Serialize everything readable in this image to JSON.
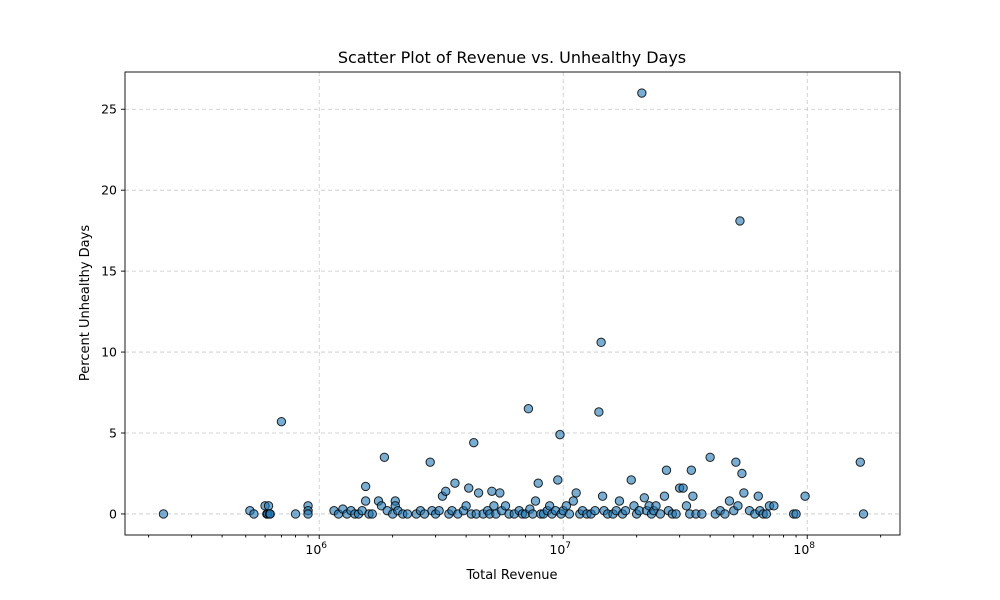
{
  "chart_data": {
    "type": "scatter",
    "title": "Scatter Plot of Revenue vs. Unhealthy Days",
    "xlabel": "Total Revenue",
    "ylabel": "Percent Unhealthy Days",
    "xscale": "log",
    "xlim": [
      160000,
      240000000
    ],
    "ylim": [
      -1.3,
      27.3
    ],
    "yticks": [
      0,
      5,
      10,
      15,
      20,
      25
    ],
    "xticks": [
      {
        "value": 1000000,
        "base": "10",
        "exp": "6"
      },
      {
        "value": 10000000,
        "base": "10",
        "exp": "7"
      },
      {
        "value": 100000000,
        "base": "10",
        "exp": "8"
      }
    ],
    "grid": true,
    "marker_color": "#1f77b4",
    "points": [
      [
        230000,
        0
      ],
      [
        520000,
        0.2
      ],
      [
        540000,
        0
      ],
      [
        600000,
        0.5
      ],
      [
        610000,
        0
      ],
      [
        620000,
        0.5
      ],
      [
        615000,
        0
      ],
      [
        625000,
        0
      ],
      [
        630000,
        0
      ],
      [
        700000,
        5.7
      ],
      [
        800000,
        0
      ],
      [
        900000,
        0.5
      ],
      [
        900000,
        0.2
      ],
      [
        900000,
        0
      ],
      [
        1150000,
        0.2
      ],
      [
        1200000,
        0
      ],
      [
        1250000,
        0.3
      ],
      [
        1300000,
        0
      ],
      [
        1350000,
        0.2
      ],
      [
        1400000,
        0
      ],
      [
        1450000,
        0
      ],
      [
        1500000,
        0.2
      ],
      [
        1550000,
        1.7
      ],
      [
        1550000,
        0.8
      ],
      [
        1600000,
        0
      ],
      [
        1650000,
        0
      ],
      [
        1750000,
        0.8
      ],
      [
        1800000,
        0.5
      ],
      [
        1850000,
        3.5
      ],
      [
        1900000,
        0.2
      ],
      [
        2000000,
        0
      ],
      [
        2050000,
        0.8
      ],
      [
        2050000,
        0.5
      ],
      [
        2100000,
        0.2
      ],
      [
        2200000,
        0
      ],
      [
        2300000,
        0
      ],
      [
        2500000,
        0
      ],
      [
        2600000,
        0.2
      ],
      [
        2700000,
        0
      ],
      [
        2850000,
        3.2
      ],
      [
        2900000,
        0.2
      ],
      [
        3000000,
        0
      ],
      [
        3100000,
        0.2
      ],
      [
        3200000,
        1.1
      ],
      [
        3300000,
        1.4
      ],
      [
        3400000,
        0
      ],
      [
        3500000,
        0.2
      ],
      [
        3600000,
        1.9
      ],
      [
        3700000,
        0
      ],
      [
        3900000,
        0.2
      ],
      [
        4000000,
        0.5
      ],
      [
        4100000,
        1.6
      ],
      [
        4200000,
        0
      ],
      [
        4300000,
        4.4
      ],
      [
        4400000,
        0
      ],
      [
        4500000,
        1.3
      ],
      [
        4700000,
        0
      ],
      [
        4900000,
        0.2
      ],
      [
        5000000,
        0
      ],
      [
        5100000,
        1.4
      ],
      [
        5200000,
        0.5
      ],
      [
        5300000,
        0
      ],
      [
        5500000,
        1.3
      ],
      [
        5600000,
        0.2
      ],
      [
        5800000,
        0.5
      ],
      [
        6000000,
        0
      ],
      [
        6300000,
        0
      ],
      [
        6600000,
        0.2
      ],
      [
        6800000,
        0
      ],
      [
        7000000,
        0
      ],
      [
        7200000,
        6.5
      ],
      [
        7300000,
        0.3
      ],
      [
        7500000,
        0
      ],
      [
        7700000,
        0.8
      ],
      [
        7900000,
        1.9
      ],
      [
        8100000,
        0
      ],
      [
        8300000,
        0
      ],
      [
        8600000,
        0.2
      ],
      [
        8800000,
        0.5
      ],
      [
        9000000,
        0
      ],
      [
        9300000,
        0.2
      ],
      [
        9500000,
        2.1
      ],
      [
        9700000,
        4.9
      ],
      [
        9800000,
        0
      ],
      [
        10000000,
        0.2
      ],
      [
        10300000,
        0.5
      ],
      [
        10600000,
        0
      ],
      [
        11000000,
        0.8
      ],
      [
        11300000,
        1.3
      ],
      [
        11700000,
        0
      ],
      [
        12000000,
        0.2
      ],
      [
        12500000,
        0
      ],
      [
        13000000,
        0
      ],
      [
        13500000,
        0.2
      ],
      [
        14000000,
        6.3
      ],
      [
        14300000,
        10.6
      ],
      [
        14500000,
        1.1
      ],
      [
        14700000,
        0.2
      ],
      [
        15200000,
        0
      ],
      [
        16000000,
        0
      ],
      [
        16500000,
        0.2
      ],
      [
        17000000,
        0.8
      ],
      [
        17500000,
        0
      ],
      [
        18000000,
        0.2
      ],
      [
        19000000,
        2.1
      ],
      [
        19500000,
        0.5
      ],
      [
        20000000,
        0
      ],
      [
        20500000,
        0.2
      ],
      [
        21000000,
        26.0
      ],
      [
        21500000,
        1.0
      ],
      [
        22000000,
        0.2
      ],
      [
        22500000,
        0.5
      ],
      [
        23000000,
        0
      ],
      [
        23500000,
        0.2
      ],
      [
        24000000,
        0.5
      ],
      [
        25000000,
        0
      ],
      [
        26000000,
        1.1
      ],
      [
        26500000,
        2.7
      ],
      [
        27000000,
        0.2
      ],
      [
        28000000,
        0
      ],
      [
        29000000,
        0
      ],
      [
        30000000,
        1.6
      ],
      [
        31000000,
        1.6
      ],
      [
        32000000,
        0.5
      ],
      [
        33000000,
        0
      ],
      [
        33500000,
        2.7
      ],
      [
        34000000,
        1.1
      ],
      [
        35000000,
        0
      ],
      [
        37000000,
        0
      ],
      [
        40000000,
        3.5
      ],
      [
        42000000,
        0
      ],
      [
        44000000,
        0.2
      ],
      [
        46000000,
        0
      ],
      [
        48000000,
        0.8
      ],
      [
        50000000,
        0.2
      ],
      [
        51000000,
        3.2
      ],
      [
        52000000,
        0.5
      ],
      [
        53000000,
        18.1
      ],
      [
        54000000,
        2.5
      ],
      [
        55000000,
        1.3
      ],
      [
        58000000,
        0.2
      ],
      [
        61000000,
        0
      ],
      [
        63000000,
        1.1
      ],
      [
        64000000,
        0.2
      ],
      [
        66000000,
        0
      ],
      [
        68000000,
        0
      ],
      [
        70000000,
        0.5
      ],
      [
        73000000,
        0.5
      ],
      [
        88000000,
        0
      ],
      [
        90000000,
        0
      ],
      [
        98000000,
        1.1
      ],
      [
        165000000,
        3.2
      ],
      [
        170000000,
        0
      ]
    ]
  }
}
